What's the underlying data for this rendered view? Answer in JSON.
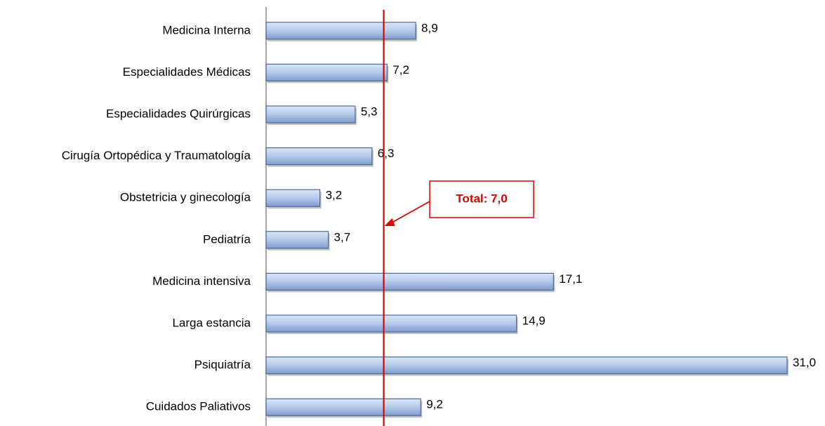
{
  "chart_data": {
    "type": "bar",
    "orientation": "horizontal",
    "categories": [
      "Medicina Interna",
      "Especialidades Médicas",
      "Especialidades Quirúrgicas",
      "Cirugía Ortopédica y Traumatología",
      "Obstetricia y ginecología",
      "Pediatría",
      "Medicina intensiva",
      "Larga estancia",
      "Psiquiatría",
      "Cuidados Paliativos"
    ],
    "values": [
      8.9,
      7.2,
      5.3,
      6.3,
      3.2,
      3.7,
      17.1,
      14.9,
      31.0,
      9.2
    ],
    "value_labels": [
      "8,9",
      "7,2",
      "5,3",
      "6,3",
      "3,2",
      "3,7",
      "17,1",
      "14,9",
      "31,0",
      "9,2"
    ],
    "color": "#a9c1e6",
    "xlim": [
      0,
      31
    ],
    "reference_line": {
      "value": 7,
      "label": "Total: 7,0",
      "color": "#e00000"
    }
  }
}
